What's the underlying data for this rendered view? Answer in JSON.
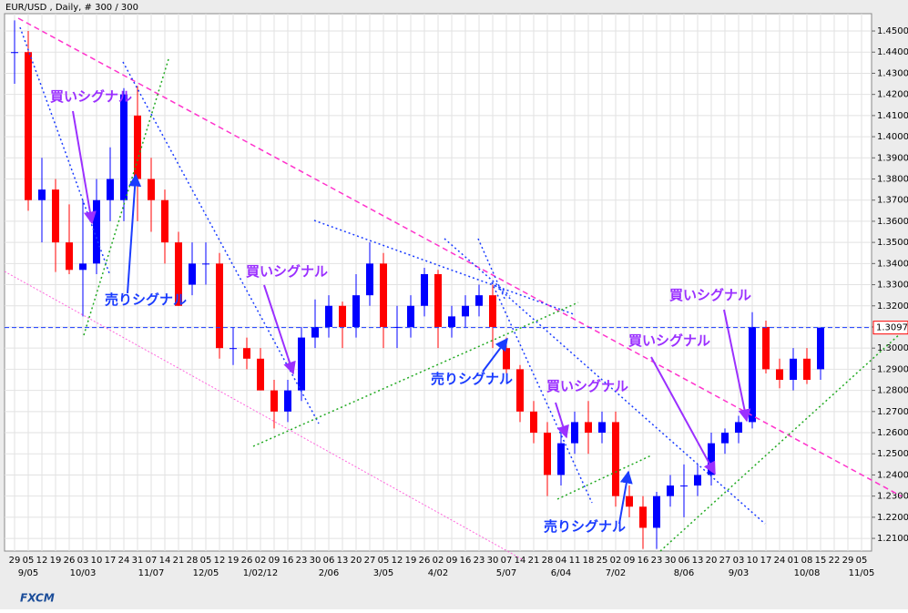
{
  "chart_data": {
    "type": "candlestick",
    "title": "EUR/USD , Daily, # 300 / 300",
    "categories": [
      "29",
      "05",
      "12",
      "19",
      "26",
      "03",
      "10",
      "17",
      "24",
      "31",
      "07",
      "14",
      "21",
      "28",
      "05",
      "12",
      "19",
      "26",
      "02",
      "09",
      "16",
      "23",
      "30",
      "06",
      "13",
      "20",
      "27",
      "05",
      "12",
      "19",
      "26",
      "02",
      "09",
      "16",
      "23",
      "30",
      "07",
      "14",
      "21",
      "28",
      "04",
      "11",
      "18",
      "25",
      "02",
      "09",
      "16",
      "23",
      "30",
      "06",
      "13",
      "20",
      "27",
      "03",
      "10",
      "17",
      "24",
      "01",
      "08",
      "15",
      "22",
      "29",
      "05"
    ],
    "month_labels": [
      null,
      "9/05",
      null,
      null,
      null,
      "10/03",
      null,
      null,
      null,
      null,
      "11/07",
      null,
      null,
      null,
      "12/05",
      null,
      null,
      null,
      "1/02/12",
      null,
      null,
      null,
      null,
      "2/06",
      null,
      null,
      null,
      "3/05",
      null,
      null,
      null,
      "4/02",
      null,
      null,
      null,
      null,
      "5/07",
      null,
      null,
      null,
      "6/04",
      null,
      null,
      null,
      "7/02",
      null,
      null,
      null,
      null,
      "8/06",
      null,
      null,
      null,
      "9/03",
      null,
      null,
      null,
      null,
      "10/08",
      null,
      null,
      null,
      "11/05"
    ],
    "open": [
      1.44,
      1.44,
      1.37,
      1.375,
      1.35,
      1.337,
      1.34,
      1.37,
      1.37,
      1.41,
      1.38,
      1.37,
      1.35,
      1.33,
      1.34,
      1.34,
      1.3,
      1.3,
      1.295,
      1.28,
      1.27,
      1.28,
      1.305,
      1.31,
      1.32,
      1.31,
      1.325,
      1.34,
      1.31,
      1.31,
      1.32,
      1.335,
      1.31,
      1.315,
      1.32,
      1.325,
      1.3,
      1.29,
      1.27,
      1.26,
      1.24,
      1.255,
      1.265,
      1.26,
      1.265,
      1.23,
      1.225,
      1.215,
      1.23,
      1.235,
      1.235,
      1.24,
      1.255,
      1.26,
      1.265,
      1.31,
      1.29,
      1.285,
      1.295,
      1.29,
      null,
      null,
      null
    ],
    "high": [
      1.455,
      1.45,
      1.39,
      1.38,
      1.368,
      1.37,
      1.38,
      1.395,
      1.423,
      1.424,
      1.39,
      1.375,
      1.355,
      1.35,
      1.35,
      1.345,
      1.31,
      1.305,
      1.3,
      1.285,
      1.285,
      1.31,
      1.323,
      1.325,
      1.322,
      1.335,
      1.35,
      1.345,
      1.32,
      1.325,
      1.338,
      1.337,
      1.32,
      1.325,
      1.33,
      1.33,
      1.305,
      1.292,
      1.275,
      1.265,
      1.26,
      1.27,
      1.275,
      1.27,
      1.27,
      1.235,
      1.23,
      1.232,
      1.24,
      1.245,
      1.245,
      1.26,
      1.262,
      1.268,
      1.317,
      1.313,
      1.295,
      1.3,
      1.3,
      1.3097,
      null,
      null,
      null
    ],
    "low": [
      1.425,
      1.365,
      1.35,
      1.336,
      1.335,
      1.315,
      1.335,
      1.36,
      1.36,
      1.36,
      1.355,
      1.34,
      1.32,
      1.325,
      1.33,
      1.295,
      1.292,
      1.29,
      1.28,
      1.262,
      1.265,
      1.275,
      1.3,
      1.305,
      1.3,
      1.305,
      1.32,
      1.3,
      1.3,
      1.305,
      1.315,
      1.3,
      1.305,
      1.31,
      1.315,
      1.3,
      1.288,
      1.265,
      1.255,
      1.23,
      1.235,
      1.25,
      1.25,
      1.255,
      1.225,
      1.22,
      1.205,
      1.205,
      1.225,
      1.22,
      1.23,
      1.235,
      1.25,
      1.255,
      1.262,
      1.288,
      1.281,
      1.28,
      1.283,
      1.285,
      null,
      null,
      null
    ],
    "close": [
      1.44,
      1.37,
      1.375,
      1.35,
      1.337,
      1.34,
      1.37,
      1.38,
      1.42,
      1.38,
      1.37,
      1.35,
      1.32,
      1.34,
      1.34,
      1.3,
      1.3,
      1.295,
      1.28,
      1.27,
      1.28,
      1.305,
      1.31,
      1.32,
      1.31,
      1.325,
      1.34,
      1.31,
      1.31,
      1.32,
      1.335,
      1.31,
      1.315,
      1.32,
      1.325,
      1.31,
      1.29,
      1.27,
      1.26,
      1.24,
      1.255,
      1.265,
      1.26,
      1.265,
      1.23,
      1.225,
      1.215,
      1.23,
      1.235,
      1.235,
      1.24,
      1.255,
      1.26,
      1.265,
      1.31,
      1.29,
      1.285,
      1.295,
      1.285,
      1.3097,
      null,
      null,
      null
    ],
    "up_color": "#0000ff",
    "down_color": "#ff0000",
    "ylim": [
      1.204,
      1.4582
    ],
    "yticks": [
      {
        "value": 1.21,
        "label": "1.2100"
      },
      {
        "value": 1.22,
        "label": "1.2200"
      },
      {
        "value": 1.23,
        "label": "1.2300"
      },
      {
        "value": 1.24,
        "label": "1.2400"
      },
      {
        "value": 1.25,
        "label": "1.2500"
      },
      {
        "value": 1.26,
        "label": "1.2600"
      },
      {
        "value": 1.27,
        "label": "1.2700"
      },
      {
        "value": 1.28,
        "label": "1.2800"
      },
      {
        "value": 1.29,
        "label": "1.2900"
      },
      {
        "value": 1.3,
        "label": "1.3000"
      },
      {
        "value": 1.31,
        "label": "1.3100"
      },
      {
        "value": 1.32,
        "label": "1.3200"
      },
      {
        "value": 1.33,
        "label": "1.3300"
      },
      {
        "value": 1.34,
        "label": "1.3400"
      },
      {
        "value": 1.35,
        "label": "1.3500"
      },
      {
        "value": 1.36,
        "label": "1.3600"
      },
      {
        "value": 1.37,
        "label": "1.3700"
      },
      {
        "value": 1.38,
        "label": "1.3800"
      },
      {
        "value": 1.39,
        "label": "1.3900"
      },
      {
        "value": 1.4,
        "label": "1.4000"
      },
      {
        "value": 1.41,
        "label": "1.4100"
      },
      {
        "value": 1.42,
        "label": "1.4200"
      },
      {
        "value": 1.43,
        "label": "1.4300"
      },
      {
        "value": 1.44,
        "label": "1.4400"
      },
      {
        "value": 1.45,
        "label": "1.4500"
      }
    ],
    "grid": true,
    "last_price": 1.3097,
    "annotations": [
      "買いシグナル",
      "売りシグナル",
      "買いシグナル",
      "売りシグナル",
      "買いシグナル",
      "売りシグナル",
      "買いシグナル",
      "買いシグナル"
    ],
    "logo": "FXCM"
  }
}
